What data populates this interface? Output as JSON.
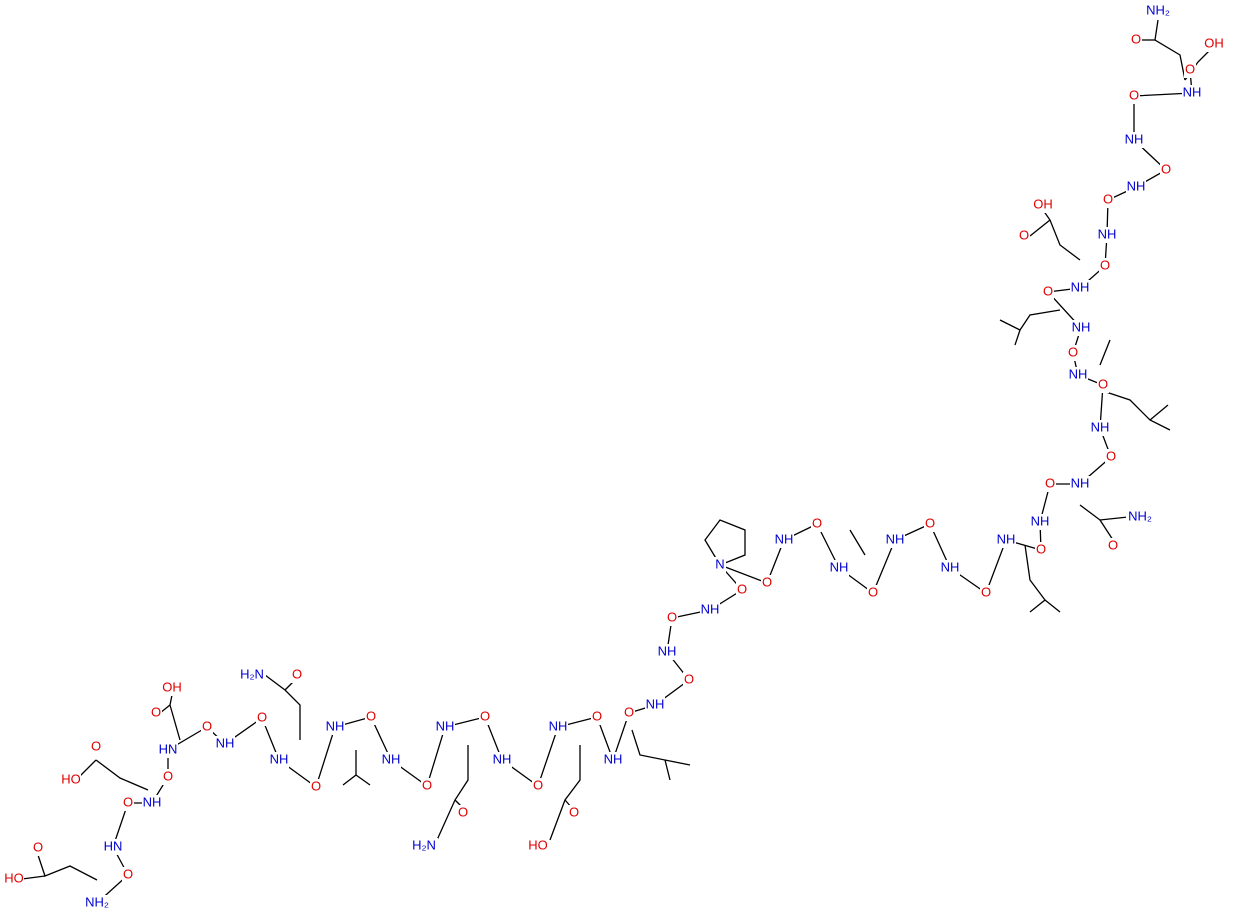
{
  "atoms": [
    "O",
    "HO",
    "NH₂",
    "O",
    "HN",
    "O",
    "NH",
    "HO",
    "O",
    "O",
    "HN",
    "OH",
    "O",
    "O",
    "NH",
    "O",
    "NH",
    "H₂N",
    "O",
    "O",
    "NH",
    "O",
    "NH",
    "O",
    "NH",
    "H₂N",
    "O",
    "O",
    "NH",
    "O",
    "NH",
    "HO",
    "O",
    "O",
    "NH",
    "O",
    "NH",
    "O",
    "NH",
    "O",
    "NH",
    "O",
    "N",
    "O",
    "NH",
    "O",
    "NH",
    "O",
    "NH",
    "O",
    "NH",
    "O",
    "NH",
    "O",
    "NH",
    "O",
    "NH₂",
    "O",
    "NH",
    "O",
    "NH",
    "O",
    "NH",
    "O",
    "NH",
    "O",
    "NH",
    "OH",
    "O",
    "O",
    "NH",
    "O",
    "NH",
    "O",
    "NH",
    "O",
    "NH",
    "NH₂",
    "O",
    "OH",
    "O"
  ]
}
